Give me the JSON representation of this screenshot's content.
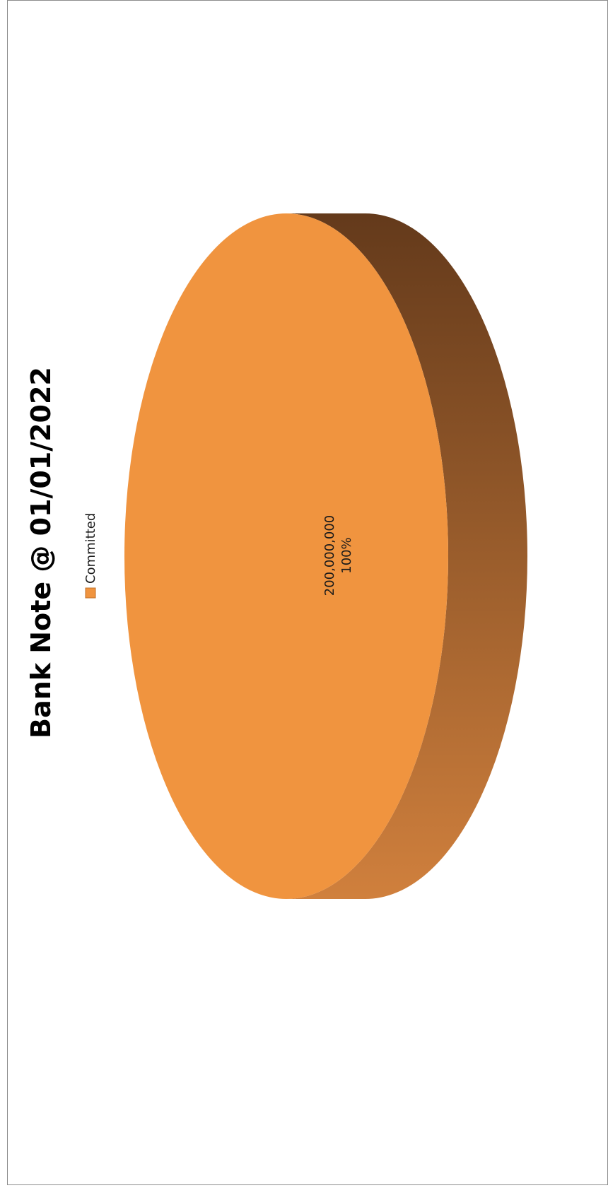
{
  "chart_data": {
    "type": "pie",
    "title": "Bank Note @ 01/01/2022",
    "legend": {
      "placement": "top",
      "entries": [
        {
          "label": "Committed",
          "color": "#F0943F"
        }
      ]
    },
    "slices": [
      {
        "label": "Committed",
        "value": 200000000,
        "value_label": "200,000,000",
        "percent_label": "100%",
        "color": "#F0943F",
        "side_color_dark": "#643A1B",
        "side_color_light": "#D0803D"
      }
    ],
    "style": "3d",
    "orientation": "rotated-90-ccw"
  }
}
